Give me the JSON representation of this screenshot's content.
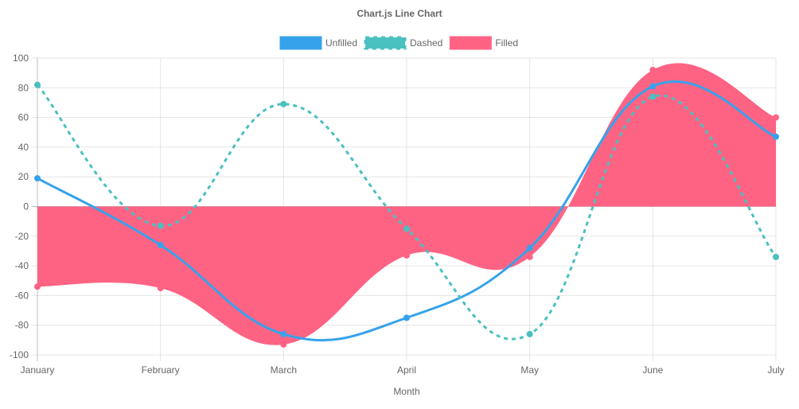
{
  "chart_data": {
    "type": "line",
    "title": "Chart.js Line Chart",
    "xlabel": "Month",
    "ylabel": "",
    "categories": [
      "January",
      "February",
      "March",
      "April",
      "May",
      "June",
      "July"
    ],
    "ylim": [
      -100,
      100
    ],
    "yticks": [
      100,
      80,
      60,
      40,
      20,
      0,
      -20,
      -40,
      -60,
      -80,
      -100
    ],
    "grid": true,
    "legend_position": "top",
    "series": [
      {
        "name": "Unfilled",
        "color": "#36a2eb",
        "style": "solid",
        "fill": false,
        "values": [
          19,
          -26,
          -86,
          -75,
          -28,
          81,
          47
        ]
      },
      {
        "name": "Dashed",
        "color": "#4bc0c0",
        "style": "dashed",
        "fill": false,
        "values": [
          82,
          -13,
          69,
          -15,
          -86,
          74,
          -34
        ]
      },
      {
        "name": "Filled",
        "color": "#ff6384",
        "style": "solid",
        "fill": true,
        "values": [
          -54,
          -55,
          -93,
          -33,
          -34,
          92,
          60
        ]
      }
    ]
  }
}
